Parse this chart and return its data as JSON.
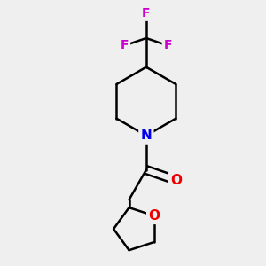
{
  "background_color": "#efefef",
  "bond_color": "#000000",
  "N_color": "#0000ee",
  "O_color": "#ee0000",
  "F_color": "#cc00cc",
  "bond_width": 1.8,
  "figsize": [
    3.0,
    3.0
  ],
  "dpi": 100,
  "xlim": [
    0,
    10
  ],
  "ylim": [
    0,
    10
  ]
}
